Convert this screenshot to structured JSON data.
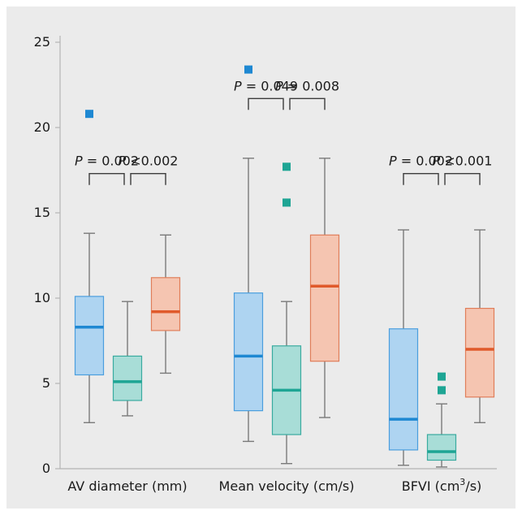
{
  "colors": {
    "background": "#ebebeb",
    "axis": "#b4b4b4",
    "whisker": "#7a7a7a",
    "bracket": "#3c3c3c",
    "groups": [
      {
        "fill": "#aed4f1",
        "stroke": "#4a9ede",
        "median": "#1e88d2",
        "outlier": "#1e88d2"
      },
      {
        "fill": "#a8ddd7",
        "stroke": "#39ab9f",
        "median": "#1ea594",
        "outlier": "#1ea594"
      },
      {
        "fill": "#f5c5b1",
        "stroke": "#e07e5a",
        "median": "#e05a2b",
        "outlier": "#e05a2b"
      }
    ]
  },
  "chart_data": {
    "type": "box",
    "ylim": [
      0,
      25
    ],
    "yticks": [
      0,
      5,
      10,
      15,
      20,
      25
    ],
    "ytick_labels": [
      "0",
      "5",
      "10",
      "15",
      "20",
      "25"
    ],
    "grid": false,
    "categories": [
      {
        "label": "AV diameter (mm)",
        "label_main": "AV diameter (mm)",
        "label_sup": "",
        "label_tail": "",
        "boxes": [
          {
            "whisker_low": 2.7,
            "q1": 5.5,
            "median": 8.3,
            "q3": 10.1,
            "whisker_high": 13.8,
            "outliers": [
              20.8
            ]
          },
          {
            "whisker_low": 3.1,
            "q1": 4.0,
            "median": 5.1,
            "q3": 6.6,
            "whisker_high": 9.8,
            "outliers": []
          },
          {
            "whisker_low": 5.6,
            "q1": 8.1,
            "median": 9.2,
            "q3": 11.2,
            "whisker_high": 13.7,
            "outliers": []
          }
        ],
        "annotations": [
          {
            "symbol": "P",
            "text": " = 0.002"
          },
          {
            "symbol": "P",
            "text": " <0.002"
          }
        ],
        "bracket_y": 17.3
      },
      {
        "label": "Mean velocity (cm/s)",
        "label_main": "Mean velocity (cm/s)",
        "label_sup": "",
        "label_tail": "",
        "boxes": [
          {
            "whisker_low": 1.6,
            "q1": 3.4,
            "median": 6.6,
            "q3": 10.3,
            "whisker_high": 18.2,
            "outliers": [
              23.4
            ]
          },
          {
            "whisker_low": 0.3,
            "q1": 2.0,
            "median": 4.6,
            "q3": 7.2,
            "whisker_high": 9.8,
            "outliers": [
              17.7,
              15.6
            ]
          },
          {
            "whisker_low": 3.0,
            "q1": 6.3,
            "median": 10.7,
            "q3": 13.7,
            "whisker_high": 18.2,
            "outliers": []
          }
        ],
        "annotations": [
          {
            "symbol": "P",
            "text": " = 0.049"
          },
          {
            "symbol": "P",
            "text": " = 0.008"
          }
        ],
        "bracket_y": 21.7
      },
      {
        "label": "BFVI (cm3/s)",
        "label_main": "BFVI (cm",
        "label_sup": "3",
        "label_tail": "/s)",
        "boxes": [
          {
            "whisker_low": 0.2,
            "q1": 1.1,
            "median": 2.9,
            "q3": 8.2,
            "whisker_high": 14.0,
            "outliers": []
          },
          {
            "whisker_low": 0.1,
            "q1": 0.5,
            "median": 1.0,
            "q3": 2.0,
            "whisker_high": 3.8,
            "outliers": [
              5.4,
              4.6
            ]
          },
          {
            "whisker_low": 2.7,
            "q1": 4.2,
            "median": 7.0,
            "q3": 9.4,
            "whisker_high": 14.0,
            "outliers": []
          }
        ],
        "annotations": [
          {
            "symbol": "P",
            "text": " = 0.002"
          },
          {
            "symbol": "P",
            "text": " <0.001"
          }
        ],
        "bracket_y": 17.3
      }
    ]
  }
}
